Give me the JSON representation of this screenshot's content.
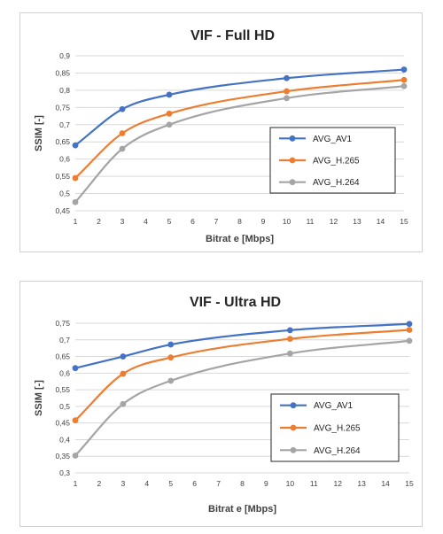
{
  "chart_data": [
    {
      "type": "line",
      "title": "VIF - Full HD",
      "xlabel": "Bitrat e [Mbps]",
      "ylabel": "SSIM [-]",
      "xlim": [
        1,
        15
      ],
      "ylim": [
        0.45,
        0.9
      ],
      "xticks": [
        "1",
        "2",
        "3",
        "4",
        "5",
        "6",
        "7",
        "8",
        "9",
        "10",
        "11",
        "12",
        "13",
        "14",
        "15"
      ],
      "yticks": [
        "0,45",
        "0,5",
        "0,55",
        "0,6",
        "0,65",
        "0,7",
        "0,75",
        "0,8",
        "0,85",
        "0,9"
      ],
      "grid": "horizontal",
      "legend_position": "center-right",
      "x": [
        1,
        3,
        5,
        10,
        15
      ],
      "series": [
        {
          "name": "AVG_AV1",
          "color": "#4472C4",
          "values": [
            0.64,
            0.745,
            0.787,
            0.835,
            0.86
          ]
        },
        {
          "name": "AVG_H.265",
          "color": "#ED7D31",
          "values": [
            0.545,
            0.675,
            0.732,
            0.797,
            0.83
          ]
        },
        {
          "name": "AVG_H.264",
          "color": "#A5A5A5",
          "values": [
            0.475,
            0.63,
            0.7,
            0.777,
            0.812
          ]
        }
      ]
    },
    {
      "type": "line",
      "title": "VIF - Ultra HD",
      "xlabel": "Bitrat e [Mbps]",
      "ylabel": "SSIM [-]",
      "xlim": [
        1,
        15
      ],
      "ylim": [
        0.3,
        0.75
      ],
      "xticks": [
        "1",
        "2",
        "3",
        "4",
        "5",
        "6",
        "7",
        "8",
        "9",
        "10",
        "11",
        "12",
        "13",
        "14",
        "15"
      ],
      "yticks": [
        "0,3",
        "0,35",
        "0,4",
        "0,45",
        "0,5",
        "0,55",
        "0,6",
        "0,65",
        "0,7",
        "0,75"
      ],
      "grid": "horizontal",
      "legend_position": "bottom-right",
      "x": [
        1,
        3,
        5,
        10,
        15
      ],
      "series": [
        {
          "name": "AVG_AV1",
          "color": "#4472C4",
          "values": [
            0.615,
            0.65,
            0.686,
            0.729,
            0.748
          ]
        },
        {
          "name": "AVG_H.265",
          "color": "#ED7D31",
          "values": [
            0.458,
            0.598,
            0.647,
            0.703,
            0.73
          ]
        },
        {
          "name": "AVG_H.264",
          "color": "#A5A5A5",
          "values": [
            0.352,
            0.507,
            0.577,
            0.659,
            0.697
          ]
        }
      ]
    }
  ]
}
